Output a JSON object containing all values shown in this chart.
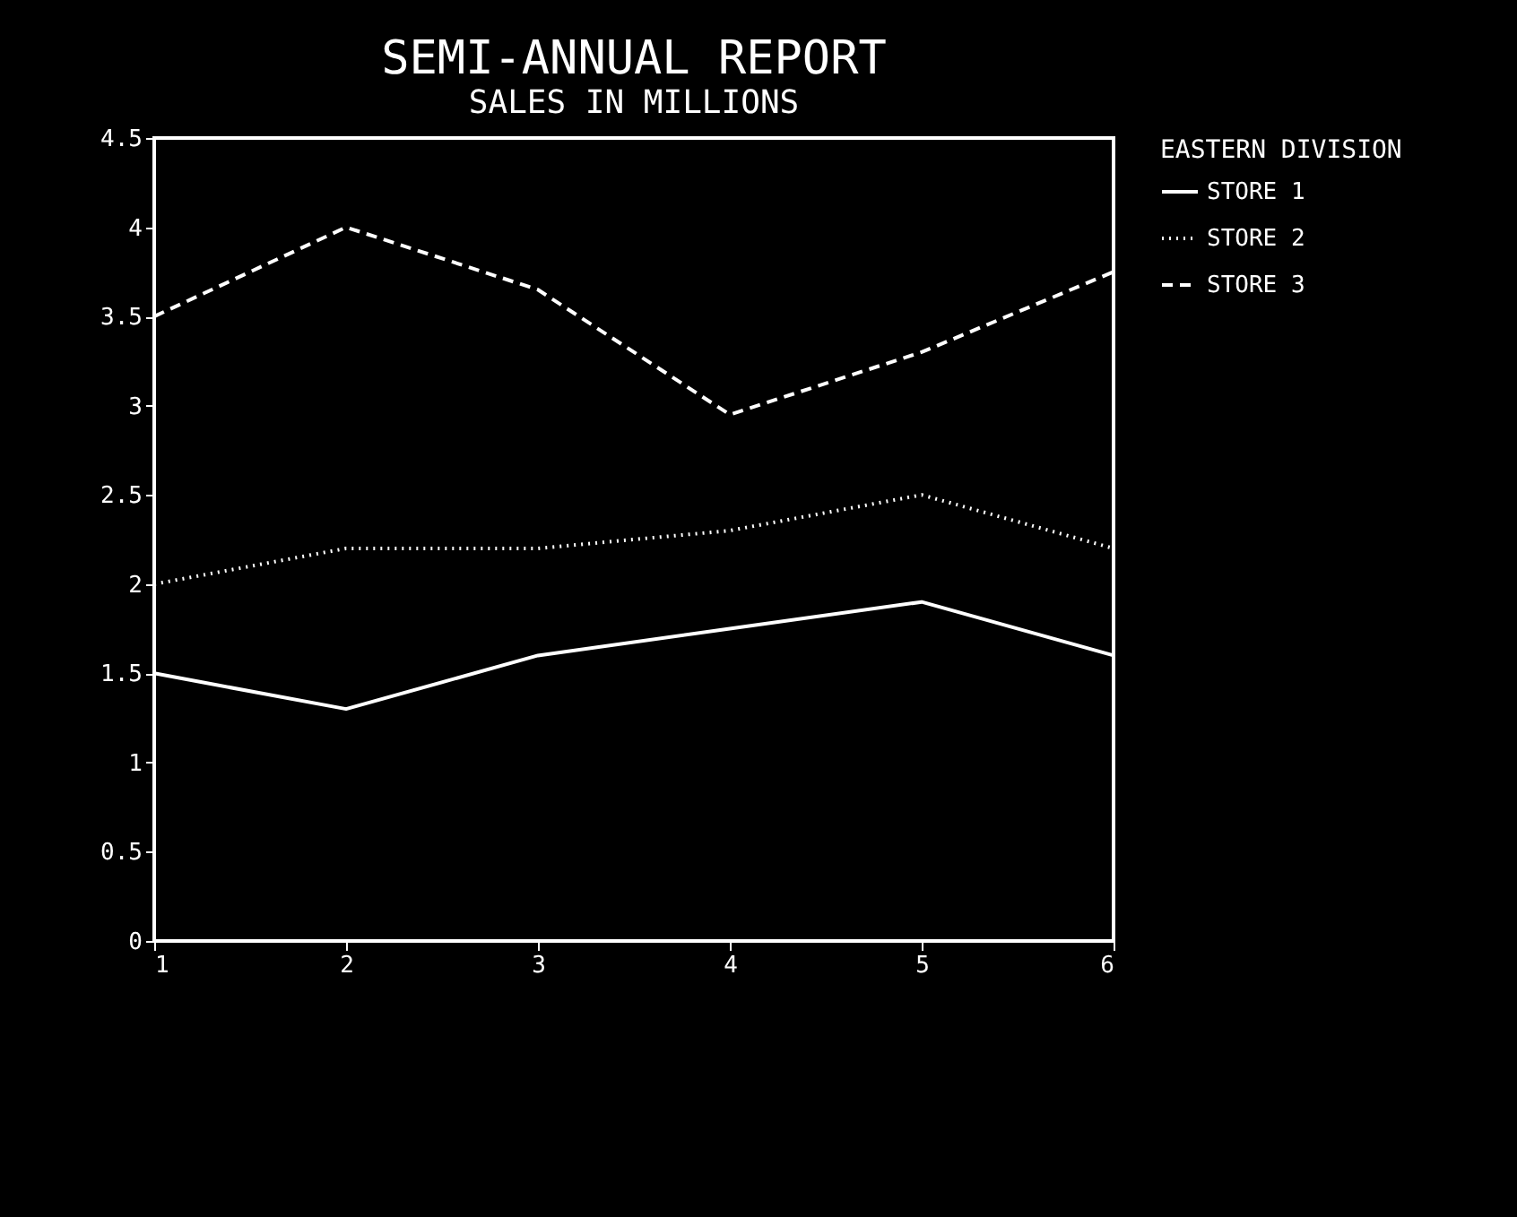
{
  "chart_data": {
    "type": "line",
    "title": "SEMI-ANNUAL REPORT",
    "subtitle": "SALES IN MILLIONS",
    "legend_title": "EASTERN DIVISION",
    "legend": "right",
    "x": [
      1,
      2,
      3,
      4,
      5,
      6
    ],
    "xlim": [
      1,
      6
    ],
    "xticks": [
      1,
      2,
      3,
      4,
      5,
      6
    ],
    "ylim": [
      0,
      4.5
    ],
    "yticks": [
      0,
      0.5,
      1,
      1.5,
      2,
      2.5,
      3,
      3.5,
      4,
      4.5
    ],
    "grid": false,
    "series": [
      {
        "name": "STORE 1",
        "color": "#ffffff",
        "line_style": "solid",
        "values": [
          1.5,
          1.3,
          1.6,
          1.75,
          1.9,
          1.6
        ]
      },
      {
        "name": "STORE 2",
        "color": "#ffffff",
        "line_style": "dotted",
        "values": [
          2.0,
          2.2,
          2.2,
          2.3,
          2.5,
          2.2
        ]
      },
      {
        "name": "STORE 3",
        "color": "#ffffff",
        "line_style": "dashed",
        "values": [
          3.5,
          4.0,
          3.65,
          2.95,
          3.3,
          3.75
        ]
      }
    ]
  }
}
